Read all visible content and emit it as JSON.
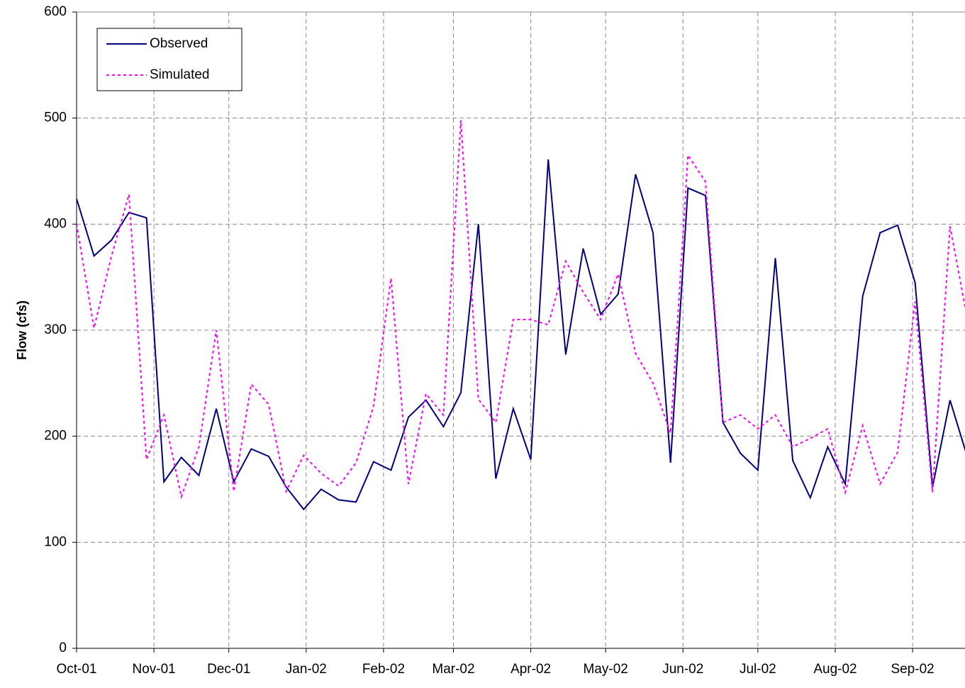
{
  "chart_data": {
    "type": "line",
    "y_label": "Flow (cfs)",
    "x": [
      0,
      7,
      14,
      21,
      28,
      35,
      42,
      49,
      56,
      63,
      70,
      77,
      84,
      91,
      98,
      105,
      112,
      119,
      126,
      133,
      140,
      147,
      154,
      161,
      168,
      175,
      182,
      189,
      196,
      203,
      210,
      217,
      224,
      231,
      238,
      245,
      252,
      259,
      266,
      273,
      280,
      287,
      294,
      301,
      308,
      315,
      322,
      329,
      336,
      343,
      350,
      357
    ],
    "series": [
      {
        "name": "Observed",
        "color": "#000080",
        "dash": "solid",
        "values": [
          424,
          370,
          385,
          411,
          406,
          157,
          180,
          163,
          226,
          157,
          188,
          181,
          152,
          131,
          150,
          140,
          138,
          176,
          168,
          218,
          234,
          209,
          241,
          400,
          160,
          226,
          178,
          461,
          277,
          377,
          315,
          334,
          447,
          392,
          175,
          434,
          427,
          213,
          184,
          168,
          368,
          177,
          142,
          190,
          155,
          332,
          392,
          399,
          345,
          152,
          234,
          180
        ]
      },
      {
        "name": "Simulated",
        "color": "#ff00ff",
        "dash": "dotted",
        "values": [
          400,
          302,
          370,
          428,
          178,
          220,
          143,
          190,
          300,
          148,
          249,
          230,
          148,
          182,
          165,
          153,
          175,
          228,
          349,
          155,
          240,
          220,
          498,
          235,
          213,
          310,
          310,
          305,
          365,
          336,
          310,
          353,
          278,
          250,
          203,
          465,
          440,
          213,
          220,
          207,
          220,
          190,
          198,
          207,
          147,
          210,
          155,
          185,
          327,
          147,
          398,
          310
        ]
      }
    ],
    "xlim": [
      0,
      356
    ],
    "xticks": [
      {
        "value": 0,
        "label": "Oct-01"
      },
      {
        "value": 31,
        "label": "Nov-01"
      },
      {
        "value": 61,
        "label": "Dec-01"
      },
      {
        "value": 92,
        "label": "Jan-02"
      },
      {
        "value": 123,
        "label": "Feb-02"
      },
      {
        "value": 151,
        "label": "Mar-02"
      },
      {
        "value": 182,
        "label": "Apr-02"
      },
      {
        "value": 212,
        "label": "May-02"
      },
      {
        "value": 243,
        "label": "Jun-02"
      },
      {
        "value": 273,
        "label": "Jul-02"
      },
      {
        "value": 304,
        "label": "Aug-02"
      },
      {
        "value": 335,
        "label": "Sep-02"
      }
    ],
    "ylim": [
      0,
      600
    ],
    "yticks": [
      0,
      100,
      200,
      300,
      400,
      500,
      600
    ],
    "grid": true,
    "legend": "top-left"
  }
}
